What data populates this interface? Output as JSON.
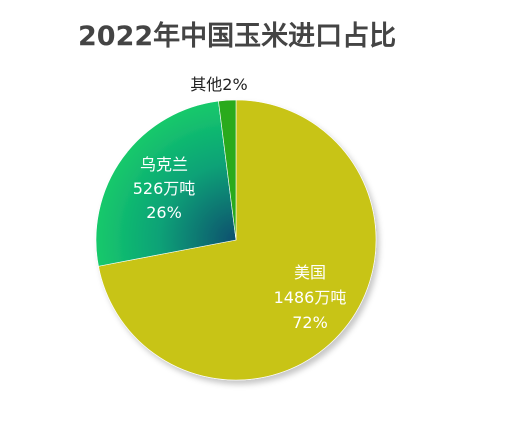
{
  "chart_data": {
    "type": "pie",
    "title": "2022年中国玉米进口占比",
    "slices": [
      {
        "label": "美国",
        "amount": "1486万吨",
        "pct_label": "72%",
        "value": 72,
        "color": "#c8c412"
      },
      {
        "label": "乌克兰",
        "amount": "526万吨",
        "pct_label": "26%",
        "value": 26,
        "color": "#12c46e",
        "color_dark": "#0b5e72"
      },
      {
        "label": "其他",
        "amount": "",
        "pct_label": "2%",
        "value": 2,
        "color": "#2aaa1c"
      }
    ]
  }
}
